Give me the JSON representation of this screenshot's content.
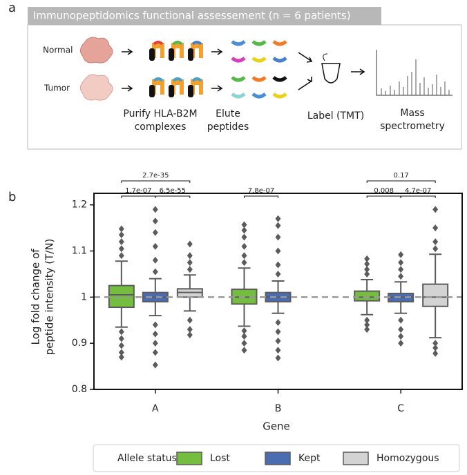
{
  "panel_a": {
    "label": "a",
    "title": "Immunopeptidomics functional assessement (n = 6 patients)",
    "rows": [
      "Normal",
      "Tumor"
    ],
    "steps": [
      [
        "Purify HLA-B2M",
        "complexes"
      ],
      [
        "Elute",
        "peptides"
      ],
      [
        "Label (TMT)"
      ],
      [
        "Mass",
        "spectrometry"
      ]
    ]
  },
  "chart_data": {
    "type": "box",
    "panel_label": "b",
    "x_label": "Gene",
    "y_label": [
      "Log fold change of",
      "peptide intensity (T/N)"
    ],
    "categories": [
      "A",
      "B",
      "C"
    ],
    "ylim": [
      0.8,
      1.225
    ],
    "yticks": [
      0.8,
      0.9,
      1.0,
      1.1,
      1.2
    ],
    "reference_line": 1.0,
    "legend_title": "Allele status",
    "legend_position": "bottom",
    "series": [
      {
        "name": "Lost",
        "color": "#74bd3f",
        "values": [
          {
            "whislo": 0.935,
            "q1": 0.978,
            "med": 1.005,
            "q3": 1.025,
            "whishi": 1.078,
            "fliers": [
              0.87,
              0.88,
              0.895,
              0.91,
              0.925,
              1.09,
              1.105,
              1.12,
              1.135,
              1.148
            ]
          },
          {
            "whislo": 0.937,
            "q1": 0.985,
            "med": 1.0,
            "q3": 1.017,
            "whishi": 1.063,
            "fliers": [
              0.885,
              0.9,
              0.915,
              0.927,
              1.075,
              1.09,
              1.11,
              1.13,
              1.145,
              1.157
            ]
          },
          {
            "whislo": 0.962,
            "q1": 0.992,
            "med": 1.0,
            "q3": 1.013,
            "whishi": 1.038,
            "fliers": [
              0.93,
              0.94,
              0.95,
              1.05,
              1.06,
              1.072,
              1.083
            ]
          }
        ]
      },
      {
        "name": "Kept",
        "color": "#4a6cb3",
        "values": [
          {
            "whislo": 0.96,
            "q1": 0.99,
            "med": 1.0,
            "q3": 1.01,
            "whishi": 1.04,
            "fliers": [
              0.853,
              0.88,
              0.9,
              0.92,
              0.94,
              1.055,
              1.08,
              1.11,
              1.14,
              1.165,
              1.19
            ]
          },
          {
            "whislo": 0.965,
            "q1": 0.99,
            "med": 1.0,
            "q3": 1.01,
            "whishi": 1.035,
            "fliers": [
              0.868,
              0.885,
              0.905,
              0.925,
              0.945,
              1.05,
              1.07,
              1.1,
              1.13,
              1.155,
              1.17
            ]
          },
          {
            "whislo": 0.965,
            "q1": 0.99,
            "med": 1.0,
            "q3": 1.008,
            "whishi": 1.033,
            "fliers": [
              0.9,
              0.915,
              0.93,
              0.95,
              1.045,
              1.06,
              1.075,
              1.092
            ]
          }
        ]
      },
      {
        "name": "Homozygous",
        "color": "#d3d3d3",
        "values": [
          {
            "whislo": 0.97,
            "q1": 1.0,
            "med": 1.01,
            "q3": 1.018,
            "whishi": 1.048,
            "fliers": [
              0.918,
              0.93,
              0.95,
              1.06,
              1.075,
              1.09,
              1.115
            ]
          },
          null,
          {
            "whislo": 0.912,
            "q1": 0.98,
            "med": 1.0,
            "q3": 1.028,
            "whishi": 1.093,
            "fliers": [
              0.878,
              0.89,
              0.9,
              1.105,
              1.12,
              1.15,
              1.19
            ]
          }
        ]
      }
    ],
    "annotations": [
      "2.7e-35",
      "1.7e-07",
      "6.5e-55",
      "7.8e-07",
      "0.17",
      "0.008",
      "4.7e-07"
    ]
  }
}
